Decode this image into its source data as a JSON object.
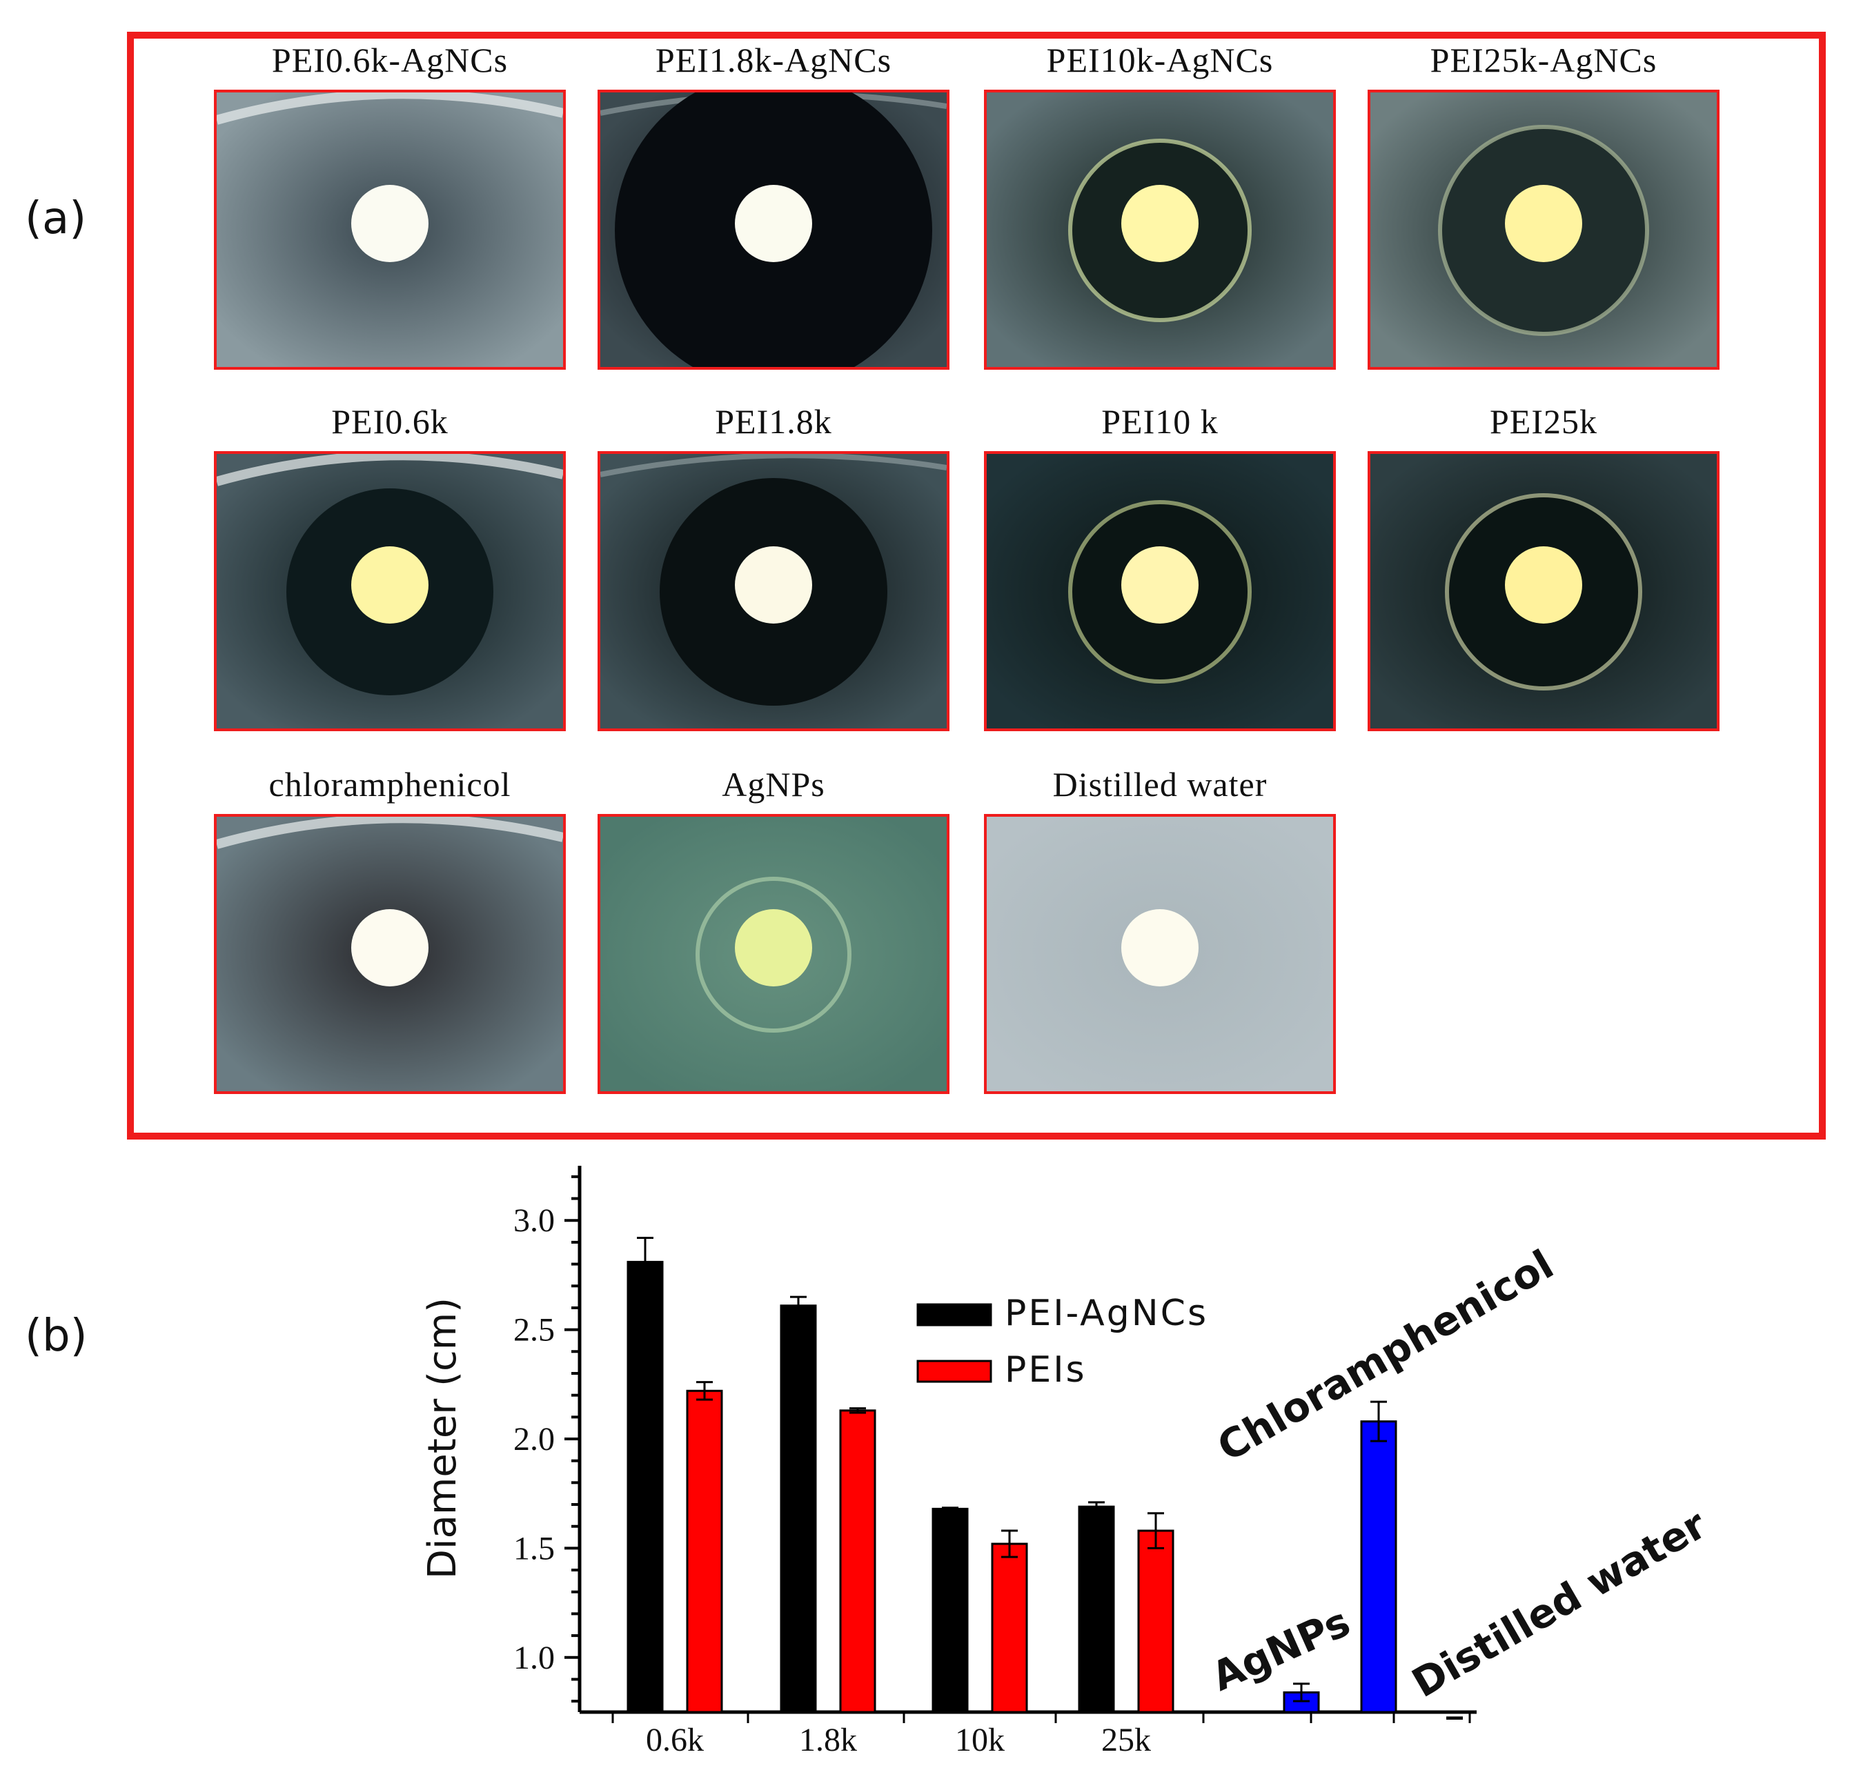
{
  "panel_a": {
    "label": "(a)",
    "cells": [
      {
        "title": "PEI0.6k-AgNCs",
        "bg": "#8a9aa0",
        "zone": "#3a4850",
        "zone_r": 0,
        "disk": "#fbfbf2",
        "ring": "none",
        "edge": "light"
      },
      {
        "title": "PEI1.8k-AgNCs",
        "bg": "#3c4a50",
        "zone": "#080c10",
        "zone_r": 230,
        "disk": "#fbfbef",
        "ring": "none",
        "edge": "dark"
      },
      {
        "title": "PEI10k-AgNCs",
        "bg": "#5f7276",
        "zone": "#15221f",
        "zone_r": 130,
        "disk": "#fff7a8",
        "ring": "#b0c08e",
        "edge": "none"
      },
      {
        "title": "PEI25k-AgNCs",
        "bg": "#6e7f80",
        "zone": "#1f2d2c",
        "zone_r": 150,
        "disk": "#fff4a0",
        "ring": "#97a58a",
        "edge": "none"
      },
      {
        "title": "PEI0.6k",
        "bg": "#4a5c63",
        "zone": "#0d1a1c",
        "zone_r": 150,
        "disk": "#fdf5a4",
        "ring": "none",
        "edge": "light"
      },
      {
        "title": "PEI1.8k",
        "bg": "#3f5157",
        "zone": "#0a1112",
        "zone_r": 165,
        "disk": "#fcf9e6",
        "ring": "none",
        "edge": "dark"
      },
      {
        "title": "PEI10 k",
        "bg": "#1f3338",
        "zone": "#0b1514",
        "zone_r": 130,
        "disk": "#fff5b0",
        "ring": "#9aa774",
        "edge": "none"
      },
      {
        "title": "PEI25k",
        "bg": "#2d3e42",
        "zone": "#0b1514",
        "zone_r": 140,
        "disk": "#fff29c",
        "ring": "#a2a986",
        "edge": "none"
      },
      {
        "title": "chloramphenicol",
        "bg": "#6a7c83",
        "zone": "#2a2a2e",
        "zone_r": 0,
        "disk": "#fdfbf0",
        "ring": "none",
        "edge": "light"
      },
      {
        "title": "AgNPs",
        "bg": "#4e7a6d",
        "zone": "#66917f",
        "zone_r": 0,
        "disk": "#e7f29a",
        "ring": "#9bbf9f",
        "edge": "none"
      },
      {
        "title": "Distilled water",
        "bg": "#b6c1c6",
        "zone": "#aab6bb",
        "zone_r": 0,
        "disk": "#fdfbee",
        "ring": "none",
        "edge": "none"
      }
    ]
  },
  "panel_b": {
    "label": "(b)"
  },
  "chart_data": {
    "type": "bar",
    "ylabel": "Diameter (cm)",
    "xlabel": "",
    "ylim": [
      0.75,
      3.25
    ],
    "yticks": [
      "3.0",
      "2.5",
      "2.0",
      "1.5",
      "1.0"
    ],
    "ytick_values": [
      3.0,
      2.5,
      2.0,
      1.5,
      1.0
    ],
    "categories": [
      "0.6k",
      "1.8k",
      "10k",
      "25k"
    ],
    "series": [
      {
        "name": "PEI-AgNCs",
        "color": "#000000",
        "values": [
          2.81,
          2.61,
          1.68,
          1.69
        ],
        "errors": [
          0.11,
          0.04,
          0.005,
          0.02
        ]
      },
      {
        "name": "PEIs",
        "color": "#ff0000",
        "values": [
          2.22,
          2.13,
          1.52,
          1.58
        ],
        "errors": [
          0.04,
          0.01,
          0.06,
          0.08
        ]
      }
    ],
    "controls": [
      {
        "name": "AgNPs",
        "color": "#0000ff",
        "value": 0.84,
        "error": 0.04
      },
      {
        "name": "Chloramphenicol",
        "color": "#0000ff",
        "value": 2.08,
        "error": 0.09
      },
      {
        "name": "Distilled water",
        "color": "#0000ff",
        "value": 0.72,
        "error": 0.005
      }
    ],
    "legend_position": "top-center",
    "grid": false
  }
}
